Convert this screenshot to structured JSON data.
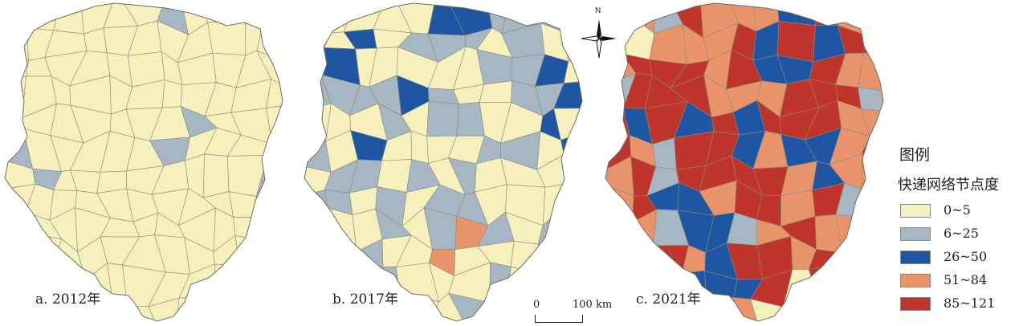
{
  "legend": {
    "title": "图例",
    "subtitle": "快递网络节点度",
    "classes": [
      {
        "label": "0~5",
        "color": "#f5f0bc"
      },
      {
        "label": "6~25",
        "color": "#a6b7c3"
      },
      {
        "label": "26~50",
        "color": "#1f56a4"
      },
      {
        "label": "51~84",
        "color": "#e8936a"
      },
      {
        "label": "85~121",
        "color": "#c0352b"
      }
    ]
  },
  "panels": [
    {
      "id": "a",
      "caption": "a. 2012年",
      "class_share": {
        "0~5": 0.93,
        "6~25": 0.07,
        "26~50": 0.0,
        "51~84": 0.0,
        "85~121": 0.0
      }
    },
    {
      "id": "b",
      "caption": "b. 2017年",
      "class_share": {
        "0~5": 0.52,
        "6~25": 0.36,
        "26~50": 0.09,
        "51~84": 0.03,
        "85~121": 0.0
      }
    },
    {
      "id": "c",
      "caption": "c. 2021年",
      "class_share": {
        "0~5": 0.03,
        "6~25": 0.07,
        "26~50": 0.18,
        "51~84": 0.32,
        "85~121": 0.4
      }
    }
  ],
  "north_arrow": {
    "letter": "N"
  },
  "scale_bar": {
    "zero": "0",
    "max": "100 km"
  }
}
